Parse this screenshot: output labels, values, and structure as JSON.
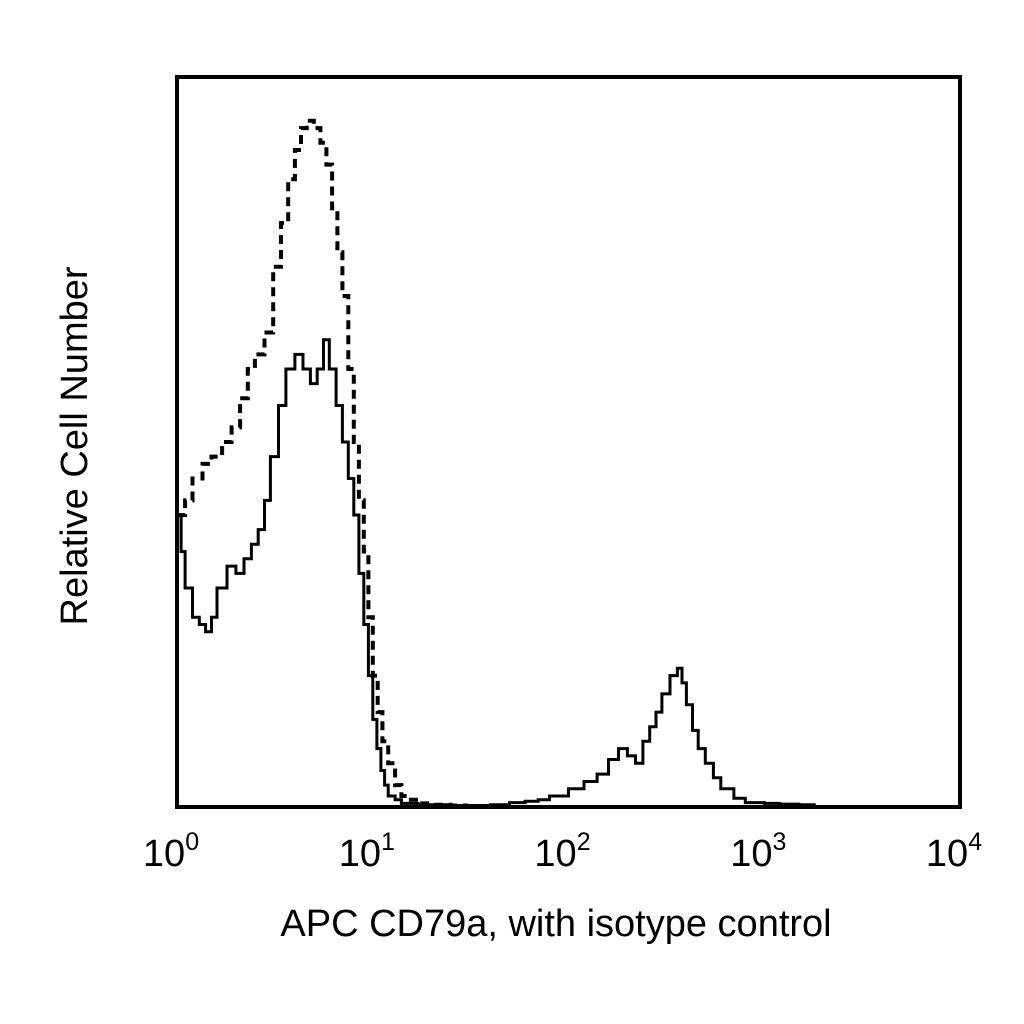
{
  "chart_data": {
    "type": "line",
    "chart_kind": "flow cytometry histogram overlay",
    "title": "",
    "xlabel": "APC CD79a, with isotype control",
    "ylabel": "Relative Cell Number",
    "x_scale": "log",
    "xlim": [
      1,
      10000
    ],
    "ylim": [
      0,
      100
    ],
    "y_ticks_shown": false,
    "grid": false,
    "legend": "none",
    "x_ticks": [
      {
        "value": 1,
        "base": "10",
        "exp": "0"
      },
      {
        "value": 10,
        "base": "10",
        "exp": "1"
      },
      {
        "value": 100,
        "base": "10",
        "exp": "2"
      },
      {
        "value": 1000,
        "base": "10",
        "exp": "3"
      },
      {
        "value": 10000,
        "base": "10",
        "exp": "4"
      }
    ],
    "colors": {
      "line": "#000000",
      "frame": "#000000",
      "background": "#ffffff"
    },
    "series": [
      {
        "style": "dashed",
        "x": [
          1.0,
          1.1,
          1.2,
          1.35,
          1.5,
          1.7,
          1.9,
          2.1,
          2.3,
          2.5,
          2.8,
          3.1,
          3.4,
          3.7,
          4.0,
          4.3,
          4.6,
          5.0,
          5.4,
          5.8,
          6.2,
          6.6,
          7.0,
          7.5,
          8.0,
          8.5,
          9.0,
          9.5,
          10.0,
          10.6,
          11.2,
          12.0,
          13.0,
          14.0,
          15.0,
          17.0,
          20.0,
          25.0,
          30.0,
          40.0
        ],
        "y": [
          40,
          42,
          45,
          47,
          48,
          50,
          52,
          56,
          60,
          62,
          65,
          74,
          80,
          86,
          90,
          93,
          94,
          93,
          91,
          88,
          82,
          76,
          70,
          60,
          50,
          42,
          35,
          26,
          18,
          13,
          9,
          6,
          3,
          1.5,
          1,
          0.5,
          0.3,
          0.2,
          0.1,
          0
        ]
      },
      {
        "style": "solid",
        "x": [
          1.0,
          1.05,
          1.1,
          1.2,
          1.3,
          1.4,
          1.5,
          1.6,
          1.8,
          2.0,
          2.2,
          2.4,
          2.6,
          2.8,
          3.0,
          3.3,
          3.6,
          4.0,
          4.4,
          4.8,
          5.2,
          5.6,
          6.0,
          6.5,
          7.0,
          7.5,
          8.0,
          8.5,
          9.0,
          9.5,
          10.0,
          10.5,
          11.0,
          11.5,
          12.0,
          13.0,
          14.0,
          15.0,
          17.0,
          20.0,
          25.0,
          30.0,
          40.0,
          50.0,
          60.0,
          70.0,
          80.0,
          100.0,
          120.0,
          140.0,
          160.0,
          180.0,
          200.0,
          220.0,
          240.0,
          260.0,
          280.0,
          300.0,
          330.0,
          360.0,
          380.0,
          400.0,
          430.0,
          460.0,
          500.0,
          550.0,
          600.0,
          700.0,
          800.0,
          1000.0,
          1200.0,
          1500.0,
          1800.0
        ],
        "y": [
          40,
          35,
          30,
          26,
          25,
          24,
          26,
          30,
          33,
          32,
          34,
          36,
          38,
          42,
          48,
          55,
          60,
          62,
          60,
          58,
          60,
          64,
          60,
          55,
          50,
          45,
          40,
          32,
          25,
          18,
          12,
          8,
          5,
          3,
          1.5,
          1,
          0.5,
          0.5,
          0.3,
          0.3,
          0.2,
          0.2,
          0.3,
          0.6,
          0.8,
          1.0,
          1.5,
          2.5,
          3.5,
          4.5,
          6.5,
          8.0,
          7.0,
          6.0,
          9.0,
          11.0,
          13.0,
          15.5,
          18.0,
          19.0,
          17.0,
          14.0,
          10.5,
          8.0,
          6.0,
          4.0,
          2.5,
          1.2,
          0.6,
          0.5,
          0.4,
          0.3,
          0.2
        ]
      }
    ]
  }
}
